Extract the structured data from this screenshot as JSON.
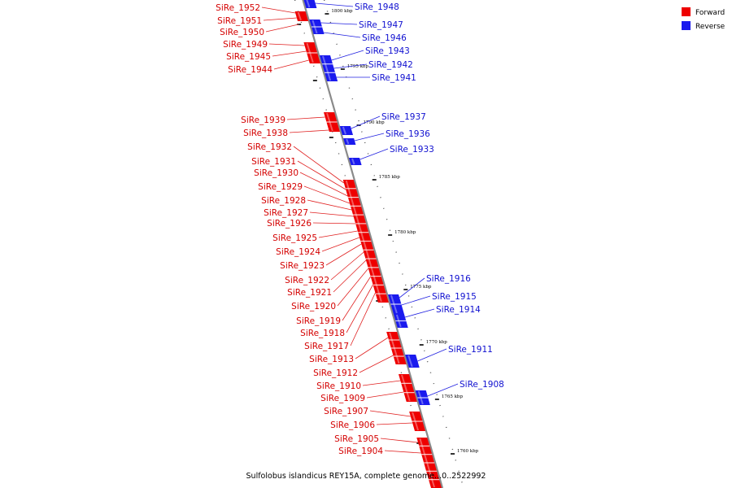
{
  "caption": "Sulfolobus islandicus REY15A, complete genome...0..2522992",
  "colors": {
    "forward": "#ee0000",
    "reverse": "#1a1aee",
    "axis": "#8a8a8a"
  },
  "legend": [
    {
      "label": "Forward",
      "color": "#ee0000"
    },
    {
      "label": "Reverse",
      "color": "#1a1aee"
    }
  ],
  "scale_ticks": [
    "1800 kbp",
    "1795 kbp",
    "1790 kbp",
    "1785 kbp",
    "1780 kbp",
    "1775 kbp",
    "1770 kbp",
    "1765 kbp",
    "1760 kbp"
  ],
  "forward_genes": [
    "SiRe_1952",
    "SiRe_1951",
    "SiRe_1950",
    "SiRe_1949",
    "SiRe_1945",
    "SiRe_1944",
    "SiRe_1939",
    "SiRe_1938",
    "SiRe_1932",
    "SiRe_1931",
    "SiRe_1930",
    "SiRe_1929",
    "SiRe_1928",
    "SiRe_1927",
    "SiRe_1926",
    "SiRe_1925",
    "SiRe_1924",
    "SiRe_1923",
    "SiRe_1922",
    "SiRe_1921",
    "SiRe_1920",
    "SiRe_1919",
    "SiRe_1918",
    "SiRe_1917",
    "SiRe_1913",
    "SiRe_1912",
    "SiRe_1910",
    "SiRe_1909",
    "SiRe_1907",
    "SiRe_1906",
    "SiRe_1905",
    "SiRe_1904"
  ],
  "reverse_genes": [
    "SiRe_1948",
    "SiRe_1947",
    "SiRe_1946",
    "SiRe_1943",
    "SiRe_1942",
    "SiRe_1941",
    "SiRe_1937",
    "SiRe_1936",
    "SiRe_1933",
    "SiRe_1916",
    "SiRe_1915",
    "SiRe_1914",
    "SiRe_1911",
    "SiRe_1908"
  ]
}
